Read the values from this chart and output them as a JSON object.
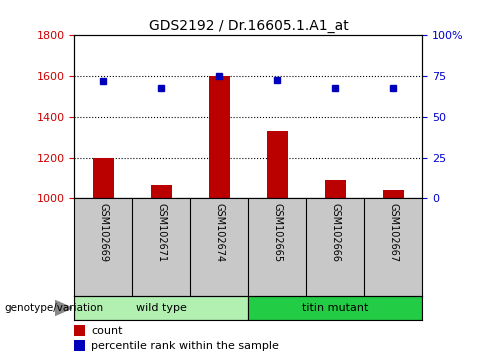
{
  "title": "GDS2192 / Dr.16605.1.A1_at",
  "samples": [
    "GSM102669",
    "GSM102671",
    "GSM102674",
    "GSM102665",
    "GSM102666",
    "GSM102667"
  ],
  "count_values": [
    1200,
    1065,
    1600,
    1330,
    1090,
    1040
  ],
  "percentile_values": [
    72,
    68,
    75,
    72.5,
    68,
    68
  ],
  "ylim_left": [
    1000,
    1800
  ],
  "ylim_right": [
    0,
    100
  ],
  "yticks_left": [
    1000,
    1200,
    1400,
    1600,
    1800
  ],
  "yticks_right": [
    0,
    25,
    50,
    75,
    100
  ],
  "ytick_labels_right": [
    "0",
    "25",
    "50",
    "75",
    "100%"
  ],
  "groups": [
    {
      "label": "wild type",
      "indices": [
        0,
        1,
        2
      ],
      "color": "#b2f0b2"
    },
    {
      "label": "titin mutant",
      "indices": [
        3,
        4,
        5
      ],
      "color": "#22cc44"
    }
  ],
  "bar_color": "#bb0000",
  "square_color": "#0000bb",
  "bar_width": 0.35,
  "grid_color": "black",
  "background_color": "#ffffff",
  "plot_bg_color": "#ffffff",
  "sample_bg_color": "#c8c8c8",
  "xlabel_color": "#cc0000",
  "ylabel_right_color": "#0000cc",
  "genotype_label": "genotype/variation",
  "legend_count": "count",
  "legend_count_color": "#bb0000",
  "legend_percentile": "percentile rank within the sample",
  "legend_percentile_color": "#0000bb"
}
